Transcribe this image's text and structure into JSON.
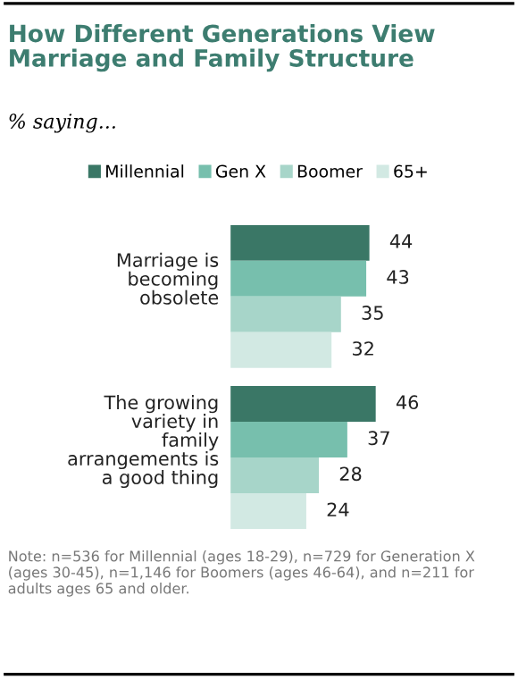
{
  "chart_data": {
    "type": "bar",
    "orientation": "horizontal",
    "title": "How Different Generations View Marriage and Family Structure",
    "subtitle": "% saying...",
    "categories": [
      "Marriage is becoming obsolete",
      "The growing variety in family arrangements is a good thing"
    ],
    "series": [
      {
        "name": "Millennial",
        "color": "#3a7766",
        "values": [
          44,
          46
        ]
      },
      {
        "name": "Gen X",
        "color": "#77bfad",
        "values": [
          43,
          37
        ]
      },
      {
        "name": "Boomer",
        "color": "#a7d5c9",
        "values": [
          35,
          28
        ]
      },
      {
        "name": "65+",
        "color": "#d2e9e3",
        "values": [
          32,
          24
        ]
      }
    ],
    "data_labels": true,
    "legend": "top",
    "tick_labels": "y",
    "annotations": [
      "Note: n=536 for Millennial (ages 18-29), n=729 for Generation X (ages 30-45), n=1,146 for Boomers (ages 46-64), and n=211 for adults ages 65 and older."
    ]
  }
}
